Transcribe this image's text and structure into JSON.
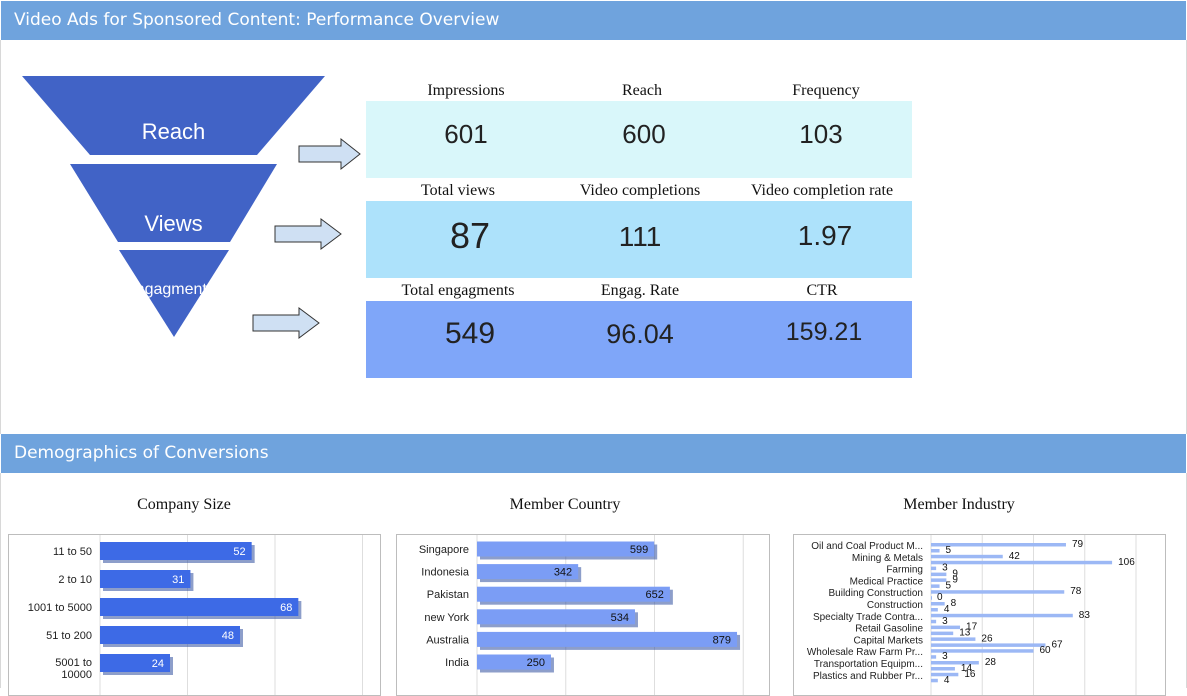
{
  "section1": {
    "title": "Video Ads for Sponsored Content: Performance Overview"
  },
  "section2": {
    "title": "Demographics of Conversions"
  },
  "funnel": {
    "stages": [
      "Reach",
      "Views",
      "Engagment"
    ],
    "colors": [
      "#4163c6",
      "#4163c6",
      "#4163c6"
    ]
  },
  "metrics": {
    "rows": [
      {
        "bg": "#d9f7fa",
        "items": [
          {
            "label": "Impressions",
            "value": "601"
          },
          {
            "label": "Reach",
            "value": "600"
          },
          {
            "label": "Frequency",
            "value": "103"
          }
        ]
      },
      {
        "bg": "#ade2fb",
        "items": [
          {
            "label": "Total views",
            "value": "87"
          },
          {
            "label": "Video completions",
            "value": "111"
          },
          {
            "label": "Video completion rate",
            "value": "1.97"
          }
        ]
      },
      {
        "bg": "#7fa6f9",
        "items": [
          {
            "label": "Total engagments",
            "value": "549"
          },
          {
            "label": "Engag. Rate",
            "value": "96.04"
          },
          {
            "label": "CTR",
            "value": "159.21"
          }
        ]
      }
    ]
  },
  "colors": {
    "bar_dark": "#3d6ae6",
    "bar_mid": "#7b9df5",
    "bar_light": "#9cb8f5"
  },
  "chart_data": [
    {
      "type": "bar",
      "title": "Company Size",
      "orientation": "horizontal",
      "categories": [
        "11 to 50",
        "2 to 10",
        "1001 to 5000",
        "51 to 200",
        "5001 to 10000"
      ],
      "values": [
        52,
        31,
        68,
        48,
        24
      ],
      "xlim": [
        0,
        120
      ],
      "grid": true
    },
    {
      "type": "bar",
      "title": "Member Country",
      "orientation": "horizontal",
      "categories": [
        "Singapore",
        "Indonesia",
        "Pakistan",
        "new York",
        "Australia",
        "India"
      ],
      "values": [
        599,
        342,
        652,
        534,
        879,
        250
      ],
      "xlim": [
        0,
        1200
      ],
      "grid": true
    },
    {
      "type": "bar",
      "title": "Member Industry",
      "orientation": "horizontal",
      "categories": [
        "Oil and Coal Product M...",
        "Mining & Metals",
        "Farming",
        "Medical Practice",
        "Building Construction",
        "Construction",
        "Specialty Trade Contra...",
        "Retail Gasoline",
        "Capital Markets",
        "Wholesale Raw Farm Pr...",
        "Transportation Equipm...",
        "Plastics and Rubber Pr..."
      ],
      "series": [
        {
          "values": [
            79,
            42,
            3,
            9,
            78,
            8,
            83,
            17,
            26,
            60,
            28,
            16
          ]
        },
        {
          "values": [
            5,
            106,
            9,
            5,
            0,
            4,
            3,
            13,
            67,
            3,
            14,
            4
          ]
        }
      ],
      "xlim": [
        0,
        120
      ],
      "grid": true
    }
  ]
}
